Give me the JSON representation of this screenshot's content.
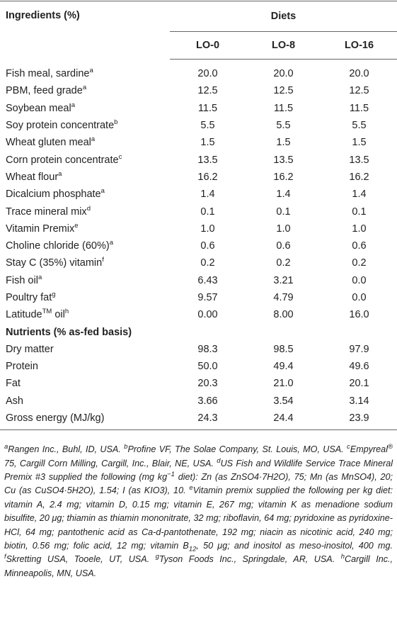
{
  "table": {
    "header": {
      "ingredients": "Ingredients (%)",
      "group": "Diets",
      "columns": [
        "LO-0",
        "LO-8",
        "LO-16"
      ]
    },
    "rows": [
      {
        "name": [
          {
            "text": "Fish meal, sardine"
          },
          {
            "sup": "a"
          }
        ],
        "values": [
          "20.0",
          "20.0",
          "20.0"
        ]
      },
      {
        "name": [
          {
            "text": "PBM, feed grade"
          },
          {
            "sup": "a"
          }
        ],
        "values": [
          "12.5",
          "12.5",
          "12.5"
        ]
      },
      {
        "name": [
          {
            "text": "Soybean meal"
          },
          {
            "sup": "a"
          }
        ],
        "values": [
          "11.5",
          "11.5",
          "11.5"
        ]
      },
      {
        "name": [
          {
            "text": "Soy protein concentrate"
          },
          {
            "sup": "b"
          }
        ],
        "values": [
          "5.5",
          "5.5",
          "5.5"
        ]
      },
      {
        "name": [
          {
            "text": "Wheat gluten meal"
          },
          {
            "sup": "a"
          }
        ],
        "values": [
          "1.5",
          "1.5",
          "1.5"
        ]
      },
      {
        "name": [
          {
            "text": "Corn protein concentrate"
          },
          {
            "sup": "c"
          }
        ],
        "values": [
          "13.5",
          "13.5",
          "13.5"
        ]
      },
      {
        "name": [
          {
            "text": "Wheat flour"
          },
          {
            "sup": "a"
          }
        ],
        "values": [
          "16.2",
          "16.2",
          "16.2"
        ]
      },
      {
        "name": [
          {
            "text": "Dicalcium phosphate"
          },
          {
            "sup": "a"
          }
        ],
        "values": [
          "1.4",
          "1.4",
          "1.4"
        ]
      },
      {
        "name": [
          {
            "text": "Trace mineral mix"
          },
          {
            "sup": "d"
          }
        ],
        "values": [
          "0.1",
          "0.1",
          "0.1"
        ]
      },
      {
        "name": [
          {
            "text": "Vitamin Premix"
          },
          {
            "sup": "e"
          }
        ],
        "values": [
          "1.0",
          "1.0",
          "1.0"
        ]
      },
      {
        "name": [
          {
            "text": "Choline chloride (60%)"
          },
          {
            "sup": "a"
          }
        ],
        "values": [
          "0.6",
          "0.6",
          "0.6"
        ]
      },
      {
        "name": [
          {
            "text": "Stay C (35%) vitamin"
          },
          {
            "sup": "f"
          }
        ],
        "values": [
          "0.2",
          "0.2",
          "0.2"
        ]
      },
      {
        "name": [
          {
            "text": "Fish oil"
          },
          {
            "sup": "a"
          }
        ],
        "values": [
          "6.43",
          "3.21",
          "0.0"
        ]
      },
      {
        "name": [
          {
            "text": "Poultry fat"
          },
          {
            "sup": "g"
          }
        ],
        "values": [
          "9.57",
          "4.79",
          "0.0"
        ]
      },
      {
        "name": [
          {
            "text": "Latitude"
          },
          {
            "sup": "TM"
          },
          {
            "text": " oil"
          },
          {
            "sup": "h"
          }
        ],
        "values": [
          "0.00",
          "8.00",
          "16.0"
        ]
      },
      {
        "heading": "Nutrients (% as-fed basis)"
      },
      {
        "name": [
          {
            "text": "Dry matter"
          }
        ],
        "values": [
          "98.3",
          "98.5",
          "97.9"
        ]
      },
      {
        "name": [
          {
            "text": "Protein"
          }
        ],
        "values": [
          "50.0",
          "49.4",
          "49.6"
        ]
      },
      {
        "name": [
          {
            "text": "Fat"
          }
        ],
        "values": [
          "20.3",
          "21.0",
          "20.1"
        ]
      },
      {
        "name": [
          {
            "text": "Ash"
          }
        ],
        "values": [
          "3.66",
          "3.54",
          "3.14"
        ]
      },
      {
        "name": [
          {
            "text": "Gross energy (MJ/kg)"
          }
        ],
        "values": [
          "24.3",
          "24.4",
          "23.9"
        ]
      }
    ]
  },
  "footnote": [
    {
      "sup": "a"
    },
    {
      "text": "Rangen Inc., Buhl, ID, USA. "
    },
    {
      "sup": "b"
    },
    {
      "text": "Profine VF, The Solae Company, St. Louis, MO, USA. "
    },
    {
      "sup": "c"
    },
    {
      "text": "Empyreal"
    },
    {
      "sup": "®"
    },
    {
      "text": " 75, Cargill Corn Milling, Cargill, Inc., Blair, NE, USA. "
    },
    {
      "sup": "d"
    },
    {
      "text": "US Fish and Wildlife Service Trace Mineral Premix #3 supplied the following (mg kg"
    },
    {
      "sup": "−1"
    },
    {
      "text": " diet): Zn (as ZnSO4·7H2O), 75; Mn (as MnSO4), 20; Cu (as CuSO4·5H2O), 1.54; I (as KIO3), 10. "
    },
    {
      "sup": "e"
    },
    {
      "text": "Vitamin premix supplied the following per kg diet: vitamin A, 2.4 mg; vitamin D, 0.15 mg; vitamin E, 267 mg; vitamin K as menadione sodium bisulfite, 20 μg; thiamin as thiamin mononitrate, 32 mg; riboflavin, 64 mg; pyridoxine as pyridoxine-HCl, 64 mg; pantothenic acid as Ca-d-pantothenate, 192 mg; niacin as nicotinic acid, 240 mg; biotin, 0.56 mg; folic acid, 12 mg; vitamin B"
    },
    {
      "sub": "12"
    },
    {
      "text": ", 50 μg; and inositol as meso-inositol, 400 mg. "
    },
    {
      "sup": "f"
    },
    {
      "text": "Skretting USA, Tooele, UT, USA. "
    },
    {
      "sup": "g"
    },
    {
      "text": "Tyson Foods Inc., Springdale, AR, USA. "
    },
    {
      "sup": "h"
    },
    {
      "text": "Cargill Inc., Minneapolis, MN, USA."
    }
  ]
}
